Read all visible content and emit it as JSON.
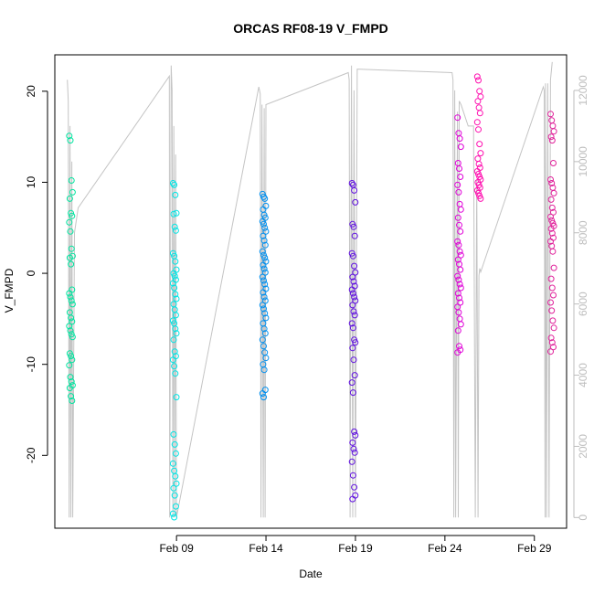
{
  "chart_data": {
    "type": "scatter",
    "title": "ORCAS RF08-19 V_FMPD",
    "xlabel": "Date",
    "ylabel": "V_FMPD",
    "x_ticks": [
      "Feb 09",
      "Feb 14",
      "Feb 19",
      "Feb 24",
      "Feb 29"
    ],
    "x_tick_days": [
      9,
      14,
      19,
      24,
      29
    ],
    "xlim_days": [
      2.2,
      30.8
    ],
    "ylim": [
      -28,
      24
    ],
    "y_ticks": [
      "-20",
      "-10",
      "0",
      "10",
      "20"
    ],
    "y_tick_values": [
      -20,
      -10,
      0,
      10,
      20
    ],
    "right_axis": {
      "description": "gray altitude trace",
      "ylim": [
        -300,
        13000
      ],
      "ticks": [
        "0",
        "2000",
        "4000",
        "6000",
        "8000",
        "10000",
        "12000"
      ],
      "tick_values": [
        0,
        2000,
        4000,
        6000,
        8000,
        10000,
        12000
      ],
      "color": "#bdbdbd"
    },
    "grid": false,
    "series": [
      {
        "color": "#00e5a0",
        "x": 3.1,
        "values": [
          15.1,
          14.6,
          10.2,
          8.9,
          8.2,
          6.6,
          6.3,
          5.6,
          4.6,
          2.7,
          1.9,
          1.7,
          1.0,
          -1.8,
          -2.2,
          -2.6,
          -3.0,
          -3.4,
          -4.3,
          -4.9,
          -5.3,
          -5.8,
          -6.3,
          -6.7,
          -7.0,
          -8.8,
          -9.1,
          -9.5,
          -10.1,
          -11.4,
          -11.9,
          -12.3,
          -12.6,
          -13.5,
          -14.0
        ]
      },
      {
        "color": "#00e5e5",
        "x": 8.9,
        "values": [
          9.9,
          9.7,
          8.6,
          6.6,
          6.5,
          5.1,
          4.7,
          2.2,
          1.9,
          1.3,
          0.4,
          0.0,
          -0.3,
          -0.7,
          -1.1,
          -1.6,
          -2.3,
          -2.8,
          -3.4,
          -4.0,
          -4.6,
          -5.2,
          -5.5,
          -6.1,
          -6.6,
          -7.3,
          -8.6,
          -9.1,
          -9.5,
          -10.2,
          -11.0,
          -13.6,
          -17.7,
          -18.8,
          -19.8,
          -20.9,
          -21.7,
          -22.3,
          -23.1,
          -23.6,
          -24.4,
          -25.6,
          -26.4,
          -26.8
        ]
      },
      {
        "color": "#0090f0",
        "x": 13.9,
        "values": [
          8.7,
          8.4,
          8.2,
          7.4,
          7.0,
          6.4,
          6.1,
          5.7,
          5.4,
          5.0,
          4.6,
          4.1,
          3.6,
          3.1,
          2.4,
          2.0,
          1.7,
          1.3,
          0.9,
          0.5,
          0.1,
          -0.4,
          -0.8,
          -1.2,
          -1.7,
          -2.1,
          -2.6,
          -3.0,
          -3.5,
          -3.9,
          -4.4,
          -4.9,
          -5.5,
          -6.1,
          -6.6,
          -7.3,
          -8.0,
          -8.7,
          -9.3,
          -10.0,
          -10.6,
          -12.8,
          -13.2,
          -13.6
        ]
      },
      {
        "color": "#6010e0",
        "x": 18.9,
        "values": [
          9.9,
          9.7,
          9.1,
          7.8,
          5.4,
          5.1,
          4.1,
          2.2,
          1.9,
          0.8,
          0.1,
          -0.4,
          -0.9,
          -1.4,
          -1.8,
          -2.2,
          -2.6,
          -3.0,
          -3.5,
          -4.2,
          -4.6,
          -5.5,
          -6.0,
          -7.3,
          -7.6,
          -8.2,
          -9.5,
          -11.2,
          -12.0,
          -13.1,
          -17.4,
          -17.8,
          -18.6,
          -19.3,
          -19.7,
          -20.7,
          -22.2,
          -23.5,
          -24.4,
          -24.8
        ]
      },
      {
        "color": "#e000d8",
        "x": 24.8,
        "values": [
          17.1,
          15.4,
          14.8,
          13.9,
          12.1,
          11.5,
          10.6,
          9.7,
          8.9,
          7.6,
          7.0,
          6.1,
          5.3,
          4.6,
          3.5,
          3.1,
          2.4,
          2.0,
          1.5,
          1.0,
          0.4,
          -0.3,
          -0.7,
          -1.2,
          -1.6,
          -2.2,
          -2.7,
          -3.2,
          -3.7,
          -4.3,
          -5.0,
          -5.6,
          -6.3,
          -8.0,
          -8.4,
          -8.7
        ]
      },
      {
        "color": "#ff10b0",
        "x": 25.9,
        "values": [
          21.6,
          21.2,
          20.0,
          19.4,
          18.9,
          18.2,
          17.6,
          16.6,
          15.8,
          14.2,
          13.2,
          12.6,
          12.0,
          11.6,
          11.2,
          10.9,
          10.6,
          10.3,
          10.0,
          9.7,
          9.4,
          9.1,
          8.8,
          8.5,
          8.2
        ]
      },
      {
        "color": "#e0209a",
        "x": 30.0,
        "values": [
          17.5,
          16.8,
          16.2,
          15.6,
          15.0,
          14.6,
          12.1,
          10.3,
          9.9,
          9.4,
          8.8,
          8.1,
          7.2,
          6.7,
          6.2,
          5.8,
          5.5,
          5.2,
          4.9,
          4.4,
          3.9,
          3.5,
          3.0,
          2.4,
          0.6,
          -0.6,
          -1.6,
          -2.4,
          -3.2,
          -4.1,
          -5.2,
          -6.0,
          -7.1,
          -7.6,
          -8.1,
          -8.6
        ]
      }
    ],
    "altitude_trace": {
      "x": [
        2.9,
        2.95,
        3.0,
        3.05,
        3.1,
        3.15,
        3.2,
        3.3,
        3.5,
        8.6,
        8.62,
        8.7,
        8.75,
        8.8,
        8.85,
        8.9,
        8.95,
        9.0,
        13.6,
        13.68,
        13.72,
        13.78,
        13.85,
        13.9,
        13.95,
        14.0,
        18.6,
        18.65,
        18.7,
        18.78,
        18.85,
        18.92,
        19.0,
        19.1,
        24.4,
        24.45,
        24.5,
        24.55,
        24.6,
        24.7,
        24.75,
        24.8,
        24.9,
        25.3,
        25.6,
        25.7,
        25.78,
        25.85,
        25.9,
        25.95,
        26.0,
        29.5,
        29.55,
        29.6,
        29.62,
        29.68,
        29.75,
        29.82,
        29.9,
        30.0
      ],
      "values": [
        12300,
        11700,
        0,
        11000,
        0,
        10000,
        0,
        8000,
        8700,
        12400,
        0,
        12700,
        12000,
        0,
        11000,
        0,
        10200,
        0,
        12100,
        11900,
        0,
        11600,
        0,
        11500,
        0,
        11600,
        12500,
        12300,
        0,
        12700,
        0,
        12000,
        0,
        12600,
        12500,
        12300,
        0,
        12000,
        0,
        11400,
        0,
        11700,
        11600,
        11000,
        11000,
        0,
        9500,
        0,
        6800,
        7000,
        6900,
        12100,
        12000,
        0,
        12200,
        0,
        12200,
        0,
        12300,
        12800
      ]
    }
  }
}
